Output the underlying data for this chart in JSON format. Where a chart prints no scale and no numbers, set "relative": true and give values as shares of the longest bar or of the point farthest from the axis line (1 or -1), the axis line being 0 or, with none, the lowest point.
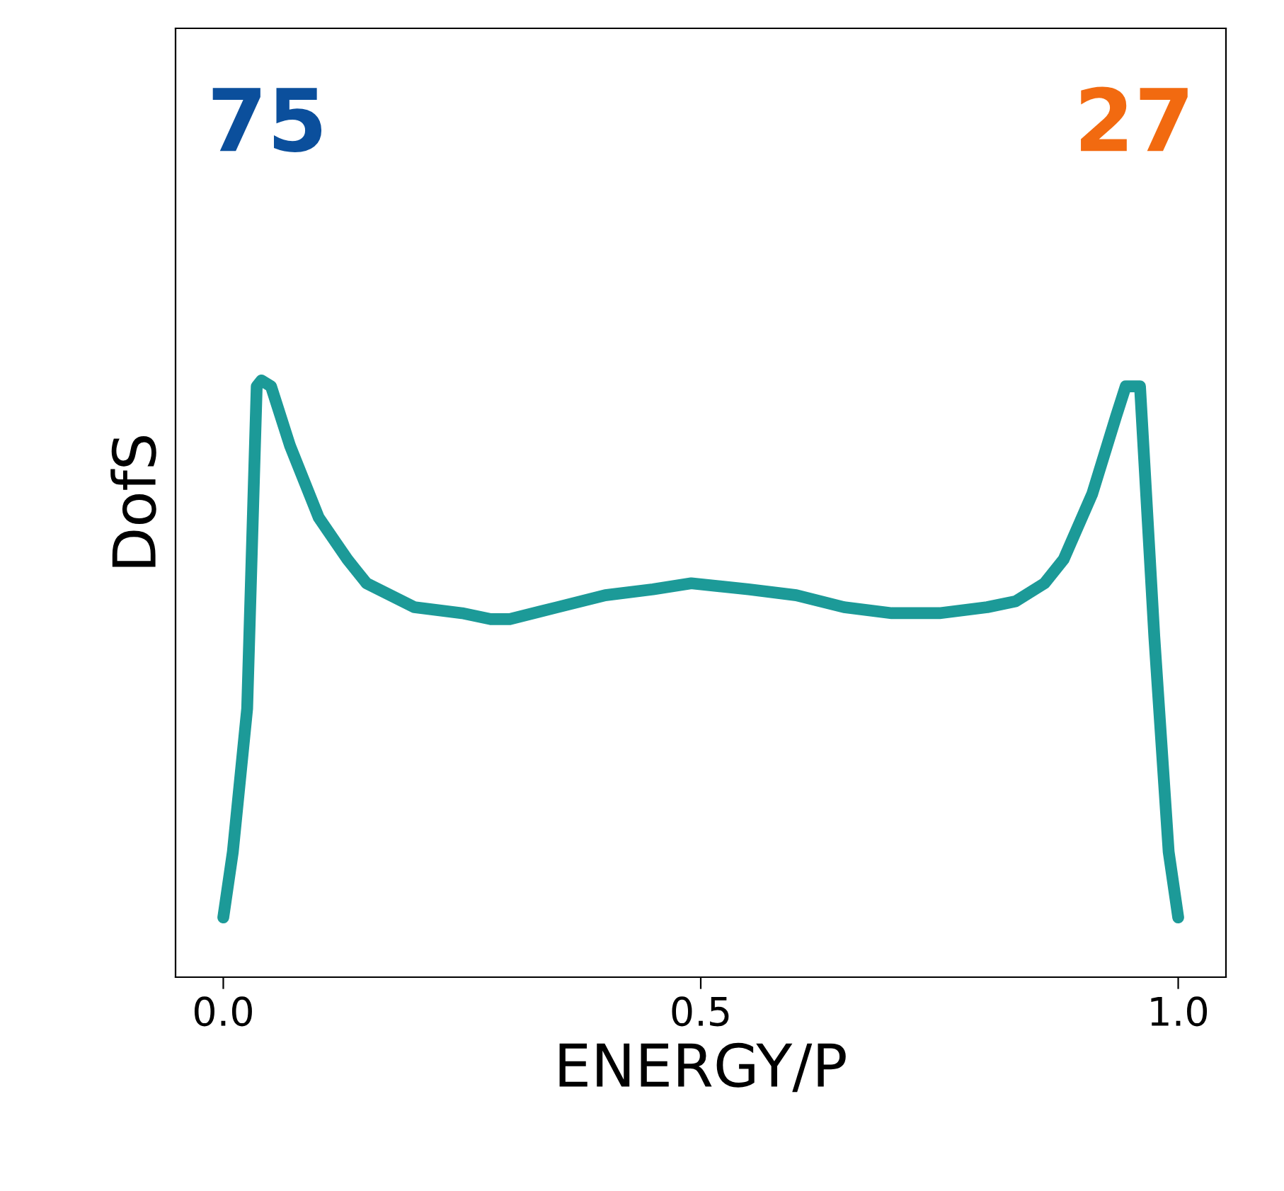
{
  "chart_data": {
    "type": "line",
    "xlabel": "ENERGY/P",
    "ylabel": "DofS",
    "relative": true,
    "xlim": [
      -0.05,
      1.05
    ],
    "xticks": [
      {
        "value": 0,
        "label": "0.0"
      },
      {
        "value": 0.5,
        "label": "0.5"
      },
      {
        "value": 1,
        "label": "1.0"
      }
    ],
    "grid": false,
    "legend": false,
    "marker": "none",
    "line_style": "solid",
    "x": [
      0,
      0.01,
      0.025,
      0.035,
      0.04,
      0.05,
      0.07,
      0.1,
      0.13,
      0.15,
      0.2,
      0.25,
      0.28,
      0.3,
      0.35,
      0.4,
      0.45,
      0.49,
      0.55,
      0.6,
      0.65,
      0.7,
      0.75,
      0.8,
      0.83,
      0.86,
      0.88,
      0.91,
      0.935,
      0.945,
      0.96,
      0.975,
      0.99,
      1.0
    ],
    "series": [
      {
        "color": "#1c9a98",
        "values": [
          0.1,
          0.21,
          0.45,
          0.99,
          1.0,
          0.99,
          0.89,
          0.77,
          0.7,
          0.66,
          0.62,
          0.61,
          0.6,
          0.6,
          0.62,
          0.64,
          0.65,
          0.66,
          0.65,
          0.64,
          0.62,
          0.61,
          0.61,
          0.62,
          0.63,
          0.66,
          0.7,
          0.81,
          0.94,
          0.99,
          0.99,
          0.57,
          0.21,
          0.1
        ]
      }
    ],
    "annotations": [
      "75",
      "27"
    ]
  }
}
